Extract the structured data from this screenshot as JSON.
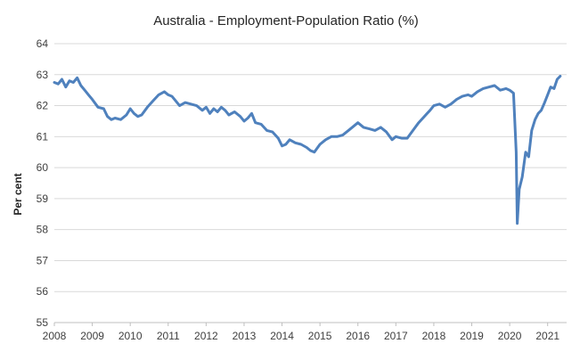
{
  "chart_data": {
    "type": "line",
    "title": "Australia - Employment-Population Ratio (%)",
    "xlabel": "",
    "ylabel": "Per cent",
    "ylim": [
      55,
      64
    ],
    "yticks": [
      55,
      56,
      57,
      58,
      59,
      60,
      61,
      62,
      63,
      64
    ],
    "xlim": [
      2008,
      2021.5
    ],
    "xticks": [
      "2008",
      "2009",
      "2010",
      "2011",
      "2012",
      "2013",
      "2014",
      "2015",
      "2016",
      "2017",
      "2018",
      "2019",
      "2020",
      "2021"
    ],
    "grid": true,
    "legend": "none",
    "color": "#4f81bd",
    "series": [
      {
        "name": "Employment-Population Ratio",
        "x": [
          2008.0,
          2008.1,
          2008.2,
          2008.3,
          2008.4,
          2008.5,
          2008.6,
          2008.7,
          2008.8,
          2008.9,
          2009.0,
          2009.15,
          2009.3,
          2009.4,
          2009.5,
          2009.6,
          2009.75,
          2009.9,
          2010.0,
          2010.1,
          2010.2,
          2010.3,
          2010.45,
          2010.6,
          2010.75,
          2010.9,
          2011.0,
          2011.1,
          2011.2,
          2011.3,
          2011.45,
          2011.6,
          2011.75,
          2011.9,
          2012.0,
          2012.1,
          2012.2,
          2012.3,
          2012.4,
          2012.5,
          2012.6,
          2012.75,
          2012.9,
          2013.0,
          2013.1,
          2013.2,
          2013.3,
          2013.45,
          2013.6,
          2013.75,
          2013.9,
          2014.0,
          2014.1,
          2014.2,
          2014.35,
          2014.5,
          2014.65,
          2014.75,
          2014.85,
          2015.0,
          2015.15,
          2015.3,
          2015.45,
          2015.6,
          2015.75,
          2015.9,
          2016.0,
          2016.15,
          2016.3,
          2016.45,
          2016.6,
          2016.75,
          2016.9,
          2017.0,
          2017.15,
          2017.3,
          2017.45,
          2017.6,
          2017.75,
          2017.9,
          2018.0,
          2018.15,
          2018.3,
          2018.45,
          2018.6,
          2018.75,
          2018.9,
          2019.0,
          2019.15,
          2019.3,
          2019.45,
          2019.6,
          2019.75,
          2019.9,
          2020.0,
          2020.1,
          2020.17,
          2020.2,
          2020.25,
          2020.33,
          2020.42,
          2020.5,
          2020.58,
          2020.67,
          2020.75,
          2020.83,
          2020.92,
          2021.0,
          2021.08,
          2021.17,
          2021.25,
          2021.33
        ],
        "values": [
          62.75,
          62.7,
          62.85,
          62.6,
          62.8,
          62.75,
          62.9,
          62.65,
          62.5,
          62.35,
          62.2,
          61.95,
          61.9,
          61.65,
          61.55,
          61.6,
          61.55,
          61.7,
          61.9,
          61.75,
          61.65,
          61.7,
          61.95,
          62.15,
          62.35,
          62.45,
          62.35,
          62.3,
          62.15,
          62.0,
          62.1,
          62.05,
          62.0,
          61.85,
          61.95,
          61.75,
          61.9,
          61.8,
          61.95,
          61.85,
          61.7,
          61.8,
          61.65,
          61.5,
          61.6,
          61.75,
          61.45,
          61.4,
          61.2,
          61.15,
          60.95,
          60.7,
          60.75,
          60.9,
          60.8,
          60.75,
          60.65,
          60.55,
          60.5,
          60.75,
          60.9,
          61.0,
          61.0,
          61.05,
          61.2,
          61.35,
          61.45,
          61.3,
          61.25,
          61.2,
          61.3,
          61.15,
          60.9,
          61.0,
          60.95,
          60.95,
          61.2,
          61.45,
          61.65,
          61.85,
          62.0,
          62.05,
          61.95,
          62.05,
          62.2,
          62.3,
          62.35,
          62.3,
          62.45,
          62.55,
          62.6,
          62.65,
          62.5,
          62.55,
          62.5,
          62.4,
          60.5,
          58.2,
          59.3,
          59.7,
          60.5,
          60.35,
          61.2,
          61.55,
          61.75,
          61.85,
          62.1,
          62.35,
          62.6,
          62.55,
          62.85,
          62.95
        ]
      }
    ]
  }
}
